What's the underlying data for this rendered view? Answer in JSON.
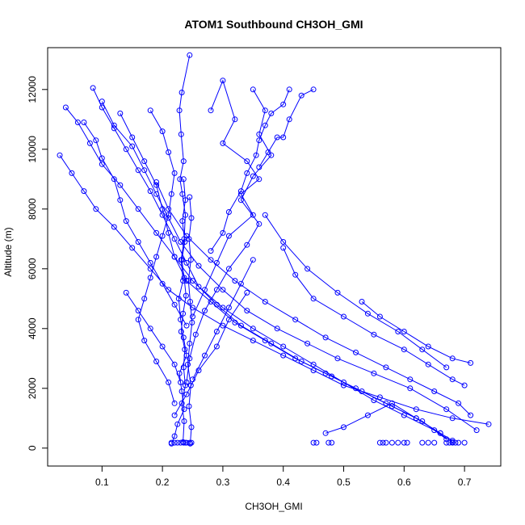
{
  "chart_data": {
    "type": "scatter",
    "title": "ATOM1 Southbound CH3OH_GMI",
    "xlabel": "CH3OH_GMI",
    "ylabel": "Altitude (m)",
    "xlim": [
      0.01,
      0.76
    ],
    "ylim": [
      -600,
      13400
    ],
    "xticks": [
      0.1,
      0.2,
      0.3,
      0.4,
      0.5,
      0.6,
      0.7
    ],
    "yticks": [
      0,
      2000,
      4000,
      6000,
      8000,
      10000,
      12000
    ],
    "grid": false,
    "legend": "none",
    "color": "#0000ff",
    "series": [
      {
        "x": [
          0.245,
          0.232,
          0.228,
          0.231,
          0.235,
          0.229,
          0.233,
          0.238,
          0.236,
          0.231,
          0.234,
          0.227,
          0.23,
          0.235,
          0.24,
          0.228,
          0.232,
          0.236,
          0.225,
          0.22,
          0.215
        ],
        "y": [
          13150,
          11900,
          11300,
          10500,
          9600,
          9000,
          8500,
          7800,
          7000,
          6300,
          5600,
          5000,
          4300,
          3700,
          3100,
          2500,
          1900,
          1300,
          800,
          400,
          150
        ]
      },
      {
        "x": [
          0.235,
          0.238,
          0.233,
          0.237,
          0.232,
          0.236,
          0.239,
          0.234,
          0.231,
          0.237,
          0.235,
          0.238,
          0.232,
          0.236,
          0.234
        ],
        "y": [
          9000,
          8300,
          7600,
          6900,
          6300,
          5700,
          5100,
          4500,
          3900,
          3300,
          2700,
          2100,
          1500,
          900,
          200
        ]
      },
      {
        "x": [
          0.245,
          0.248,
          0.244,
          0.247,
          0.243,
          0.246,
          0.249,
          0.245,
          0.242,
          0.247,
          0.244,
          0.248,
          0.246
        ],
        "y": [
          8400,
          7700,
          7000,
          6300,
          5600,
          4900,
          4200,
          3500,
          2800,
          2100,
          1400,
          700,
          150
        ]
      },
      {
        "x": [
          0.35,
          0.37,
          0.36,
          0.38,
          0.35,
          0.33,
          0.36,
          0.34,
          0.31,
          0.29,
          0.27,
          0.255,
          0.245,
          0.24
        ],
        "y": [
          12000,
          11300,
          10500,
          9800,
          9100,
          8300,
          7500,
          6800,
          6000,
          5300,
          4600,
          3800,
          3000,
          2200
        ]
      },
      {
        "x": [
          0.28,
          0.3,
          0.32,
          0.3,
          0.34,
          0.36,
          0.33,
          0.35,
          0.31,
          0.29,
          0.27,
          0.25
        ],
        "y": [
          11300,
          12300,
          11000,
          10200,
          9600,
          9000,
          8500,
          7800,
          7100,
          6200,
          5300,
          4400
        ]
      },
      {
        "x": [
          0.41,
          0.4,
          0.38,
          0.37,
          0.36,
          0.355,
          0.34,
          0.33,
          0.31,
          0.3,
          0.28
        ],
        "y": [
          12000,
          11500,
          11200,
          10800,
          10300,
          9800,
          9200,
          8600,
          7900,
          7200,
          6600
        ]
      },
      {
        "x": [
          0.085,
          0.1,
          0.12,
          0.14,
          0.16,
          0.18,
          0.2,
          0.22,
          0.24,
          0.26,
          0.3,
          0.35,
          0.4,
          0.45,
          0.5,
          0.55,
          0.6,
          0.65,
          0.68
        ],
        "y": [
          12050,
          11400,
          10700,
          10000,
          9300,
          8600,
          7800,
          7000,
          6200,
          5400,
          4700,
          4000,
          3400,
          2800,
          2200,
          1600,
          1100,
          600,
          200
        ]
      },
      {
        "x": [
          0.04,
          0.06,
          0.08,
          0.1,
          0.13,
          0.16,
          0.19,
          0.22,
          0.25,
          0.29,
          0.33,
          0.38,
          0.43,
          0.48,
          0.53,
          0.58,
          0.63,
          0.67
        ],
        "y": [
          11400,
          10900,
          10200,
          9500,
          8800,
          8000,
          7200,
          6400,
          5600,
          4800,
          4100,
          3500,
          2900,
          2400,
          1900,
          1400,
          900,
          300
        ]
      },
      {
        "x": [
          0.03,
          0.05,
          0.07,
          0.09,
          0.12,
          0.15,
          0.18,
          0.21,
          0.25,
          0.3,
          0.35,
          0.4,
          0.45,
          0.5,
          0.56,
          0.62,
          0.68,
          0.74
        ],
        "y": [
          9800,
          9200,
          8600,
          8000,
          7400,
          6700,
          6000,
          5300,
          4700,
          4100,
          3600,
          3100,
          2600,
          2100,
          1700,
          1300,
          1000,
          800
        ]
      },
      {
        "x": [
          0.1,
          0.12,
          0.15,
          0.17,
          0.19,
          0.21,
          0.23,
          0.26,
          0.3,
          0.34,
          0.39,
          0.44,
          0.49,
          0.55,
          0.61,
          0.67,
          0.72
        ],
        "y": [
          11600,
          10800,
          10100,
          9300,
          8500,
          7700,
          6900,
          6100,
          5300,
          4600,
          4000,
          3500,
          3000,
          2500,
          2000,
          1300,
          600
        ]
      },
      {
        "x": [
          0.13,
          0.15,
          0.17,
          0.19,
          0.2,
          0.21,
          0.22,
          0.24,
          0.28,
          0.32,
          0.37,
          0.42,
          0.47,
          0.52,
          0.57,
          0.62,
          0.66
        ],
        "y": [
          11200,
          10400,
          9600,
          8800,
          8000,
          7200,
          6400,
          5600,
          4900,
          4200,
          3600,
          3000,
          2500,
          2000,
          1500,
          1000,
          500
        ]
      },
      {
        "x": [
          0.18,
          0.2,
          0.21,
          0.22,
          0.215,
          0.21,
          0.2,
          0.19,
          0.18,
          0.17,
          0.16,
          0.17,
          0.19,
          0.21,
          0.22
        ],
        "y": [
          11300,
          10600,
          9900,
          9200,
          8500,
          7800,
          7100,
          6400,
          5700,
          5000,
          4300,
          3600,
          2900,
          2200,
          1500
        ]
      },
      {
        "x": [
          0.07,
          0.09,
          0.1,
          0.12,
          0.13,
          0.14,
          0.16,
          0.18,
          0.2,
          0.22,
          0.24
        ],
        "y": [
          10900,
          10300,
          9700,
          9000,
          8300,
          7600,
          6900,
          6200,
          5500,
          4800,
          4100
        ]
      },
      {
        "x": [
          0.19,
          0.21,
          0.24,
          0.28,
          0.32,
          0.37,
          0.42,
          0.47,
          0.52,
          0.57,
          0.61,
          0.65,
          0.69,
          0.71
        ],
        "y": [
          8900,
          8000,
          7100,
          6300,
          5600,
          4900,
          4300,
          3700,
          3200,
          2700,
          2300,
          1900,
          1500,
          1100
        ]
      },
      {
        "x": [
          0.4,
          0.42,
          0.45,
          0.5,
          0.55,
          0.6,
          0.64,
          0.68,
          0.7
        ],
        "y": [
          6700,
          5800,
          5000,
          4400,
          3800,
          3300,
          2800,
          2300,
          2100
        ]
      },
      {
        "x": [
          0.37,
          0.4,
          0.44,
          0.49,
          0.54,
          0.59,
          0.63,
          0.67
        ],
        "y": [
          7800,
          6900,
          6000,
          5200,
          4500,
          3900,
          3300,
          2700
        ]
      },
      {
        "x": [
          0.53,
          0.56,
          0.6,
          0.64,
          0.68,
          0.71
        ],
        "y": [
          4900,
          4400,
          3900,
          3400,
          3000,
          2850
        ]
      },
      {
        "x": [
          0.47,
          0.5,
          0.54,
          0.58,
          0.62,
          0.66,
          0.68
        ],
        "y": [
          500,
          700,
          1100,
          1500,
          1000,
          500,
          250
        ]
      },
      {
        "x": [
          0.22,
          0.24,
          0.26,
          0.29,
          0.31,
          0.34
        ],
        "y": [
          1100,
          1800,
          2600,
          3400,
          4300,
          5200
        ]
      },
      {
        "x": [
          0.25,
          0.27,
          0.29,
          0.31,
          0.33,
          0.35
        ],
        "y": [
          2300,
          3100,
          3900,
          4700,
          5500,
          6300
        ]
      },
      {
        "x": [
          0.14,
          0.16,
          0.18,
          0.2,
          0.22,
          0.23
        ],
        "y": [
          5200,
          4600,
          4000,
          3400,
          2800,
          2200
        ]
      },
      {
        "x": [
          0.36,
          0.375,
          0.39,
          0.4,
          0.41,
          0.43,
          0.45
        ],
        "y": [
          9400,
          9900,
          10400,
          10400,
          11000,
          11800,
          12000
        ]
      }
    ],
    "surface_points": {
      "y": 180,
      "x": [
        0.215,
        0.22,
        0.225,
        0.23,
        0.235,
        0.238,
        0.24,
        0.245,
        0.248,
        0.45,
        0.455,
        0.475,
        0.48,
        0.56,
        0.565,
        0.57,
        0.58,
        0.59,
        0.6,
        0.605,
        0.63,
        0.64,
        0.65,
        0.67,
        0.675,
        0.68,
        0.685,
        0.69,
        0.7
      ]
    }
  }
}
